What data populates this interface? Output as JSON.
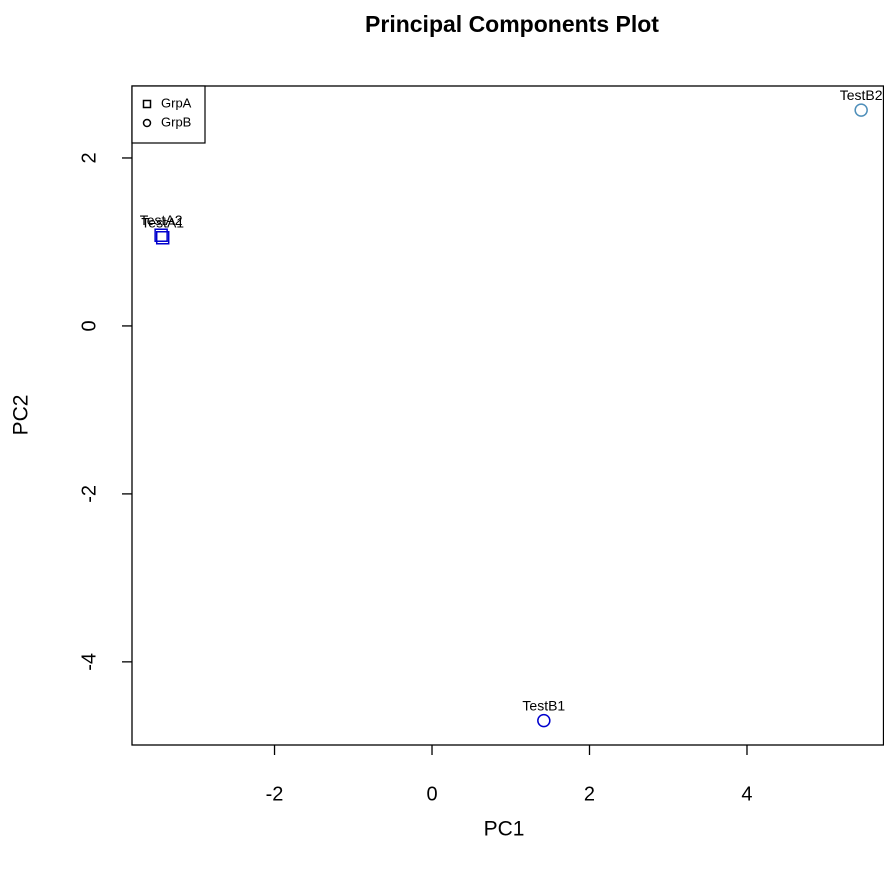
{
  "chart_data": {
    "type": "scatter",
    "title": "Principal Components Plot",
    "x_label": "PC1",
    "y_label": "PC2",
    "xlim": [
      -3.81,
      5.74
    ],
    "ylim": [
      -4.99,
      2.857
    ],
    "xticks": [
      -2,
      0,
      2,
      4
    ],
    "yticks": [
      -4,
      -2,
      0,
      2
    ],
    "legend": "top-left",
    "series": [
      {
        "name": "GrpA",
        "marker": "square",
        "x": [
          -3.44,
          -3.42
        ],
        "y": [
          1.08,
          1.05
        ],
        "labels": [
          "TestA2",
          "TestA1"
        ],
        "colors": [
          "#0000cd",
          "#0000cd"
        ]
      },
      {
        "name": "GrpB",
        "marker": "circle",
        "x": [
          1.42,
          5.45
        ],
        "y": [
          -4.7,
          2.57
        ],
        "labels": [
          "TestB1",
          "TestB2"
        ],
        "colors": [
          "#0000cd",
          "#4f8fba"
        ]
      }
    ]
  }
}
